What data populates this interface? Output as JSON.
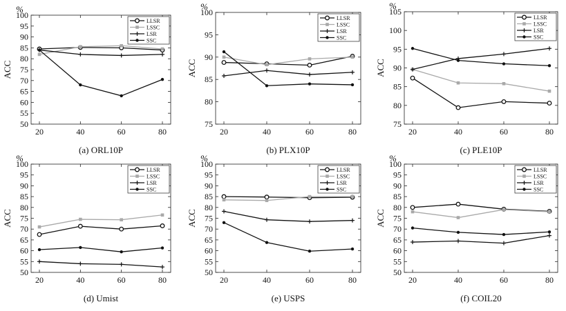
{
  "chart_data": [
    {
      "type": "line",
      "caption": "(a) ORL10P",
      "ylabel": "ACC",
      "unit": "%",
      "x": [
        20,
        40,
        60,
        80
      ],
      "ylim": [
        50,
        100
      ],
      "yticks": [
        50,
        55,
        60,
        65,
        70,
        75,
        80,
        85,
        90,
        95,
        100
      ],
      "series": [
        {
          "name": "LLSR",
          "values": [
            84.5,
            85.2,
            85.0,
            84.0
          ]
        },
        {
          "name": "LSSC",
          "values": [
            82.0,
            85.5,
            86.0,
            84.5
          ]
        },
        {
          "name": "LSR",
          "values": [
            84.0,
            82.0,
            81.5,
            82.0
          ]
        },
        {
          "name": "SSC",
          "values": [
            84.0,
            68.0,
            63.0,
            70.5
          ]
        }
      ]
    },
    {
      "type": "line",
      "caption": "(b) PLX10P",
      "ylabel": "ACC",
      "unit": "%",
      "x": [
        20,
        40,
        60,
        80
      ],
      "ylim": [
        75,
        100
      ],
      "yticks": [
        75,
        80,
        85,
        90,
        95,
        100
      ],
      "series": [
        {
          "name": "LLSR",
          "values": [
            88.8,
            88.5,
            88.2,
            90.2
          ]
        },
        {
          "name": "LSSC",
          "values": [
            90.0,
            88.3,
            89.6,
            90.0
          ]
        },
        {
          "name": "LSR",
          "values": [
            85.8,
            87.0,
            86.1,
            86.6
          ]
        },
        {
          "name": "SSC",
          "values": [
            91.2,
            83.6,
            84.0,
            83.8
          ]
        }
      ]
    },
    {
      "type": "line",
      "caption": "(c) PLE10P",
      "ylabel": "ACC",
      "unit": "%",
      "x": [
        20,
        40,
        60,
        80
      ],
      "ylim": [
        75,
        105
      ],
      "yticks": [
        75,
        80,
        85,
        90,
        95,
        100,
        105
      ],
      "series": [
        {
          "name": "LLSR",
          "values": [
            87.3,
            79.4,
            81.0,
            80.6
          ]
        },
        {
          "name": "LSSC",
          "values": [
            89.6,
            86.0,
            85.8,
            83.8
          ]
        },
        {
          "name": "LSR",
          "values": [
            89.6,
            92.5,
            93.7,
            95.2
          ]
        },
        {
          "name": "SSC",
          "values": [
            95.2,
            92.0,
            91.1,
            90.6
          ]
        }
      ]
    },
    {
      "type": "line",
      "caption": "(d) Umist",
      "ylabel": "ACC",
      "unit": "%",
      "x": [
        20,
        40,
        60,
        80
      ],
      "ylim": [
        50,
        100
      ],
      "yticks": [
        50,
        55,
        60,
        65,
        70,
        75,
        80,
        85,
        90,
        95,
        100
      ],
      "series": [
        {
          "name": "LLSR",
          "values": [
            67.5,
            71.3,
            70.0,
            71.5
          ]
        },
        {
          "name": "LSSC",
          "values": [
            71.0,
            74.5,
            74.3,
            76.5
          ]
        },
        {
          "name": "LSR",
          "values": [
            55.0,
            54.0,
            53.7,
            52.5
          ]
        },
        {
          "name": "SSC",
          "values": [
            60.5,
            61.5,
            59.5,
            61.3
          ]
        }
      ]
    },
    {
      "type": "line",
      "caption": "(e) USPS",
      "ylabel": "ACC",
      "unit": "%",
      "x": [
        20,
        40,
        60,
        80
      ],
      "ylim": [
        50,
        100
      ],
      "yticks": [
        50,
        55,
        60,
        65,
        70,
        75,
        80,
        85,
        90,
        95,
        100
      ],
      "series": [
        {
          "name": "LLSR",
          "values": [
            85.0,
            84.8,
            84.5,
            84.7
          ]
        },
        {
          "name": "LSSC",
          "values": [
            83.5,
            83.2,
            85.0,
            85.0
          ]
        },
        {
          "name": "LSR",
          "values": [
            78.2,
            74.3,
            73.5,
            74.0
          ]
        },
        {
          "name": "SSC",
          "values": [
            73.0,
            63.8,
            59.8,
            60.8
          ]
        }
      ]
    },
    {
      "type": "line",
      "caption": "(f) COIL20",
      "ylabel": "ACC",
      "unit": "%",
      "x": [
        20,
        40,
        60,
        80
      ],
      "ylim": [
        50,
        100
      ],
      "yticks": [
        50,
        55,
        60,
        65,
        70,
        75,
        80,
        85,
        90,
        95,
        100
      ],
      "series": [
        {
          "name": "LLSR",
          "values": [
            80.0,
            81.5,
            79.2,
            78.2
          ]
        },
        {
          "name": "LSSC",
          "values": [
            78.0,
            75.3,
            79.0,
            78.0
          ]
        },
        {
          "name": "LSR",
          "values": [
            64.0,
            64.5,
            63.5,
            67.0
          ]
        },
        {
          "name": "SSC",
          "values": [
            70.5,
            68.5,
            67.5,
            68.7
          ]
        }
      ]
    }
  ],
  "styles": {
    "LLSR": {
      "color": "#111111",
      "marker": "open-circle"
    },
    "LSSC": {
      "color": "#a9a9a9",
      "marker": "square"
    },
    "LSR": {
      "color": "#111111",
      "marker": "plus"
    },
    "SSC": {
      "color": "#111111",
      "marker": "dot"
    }
  }
}
